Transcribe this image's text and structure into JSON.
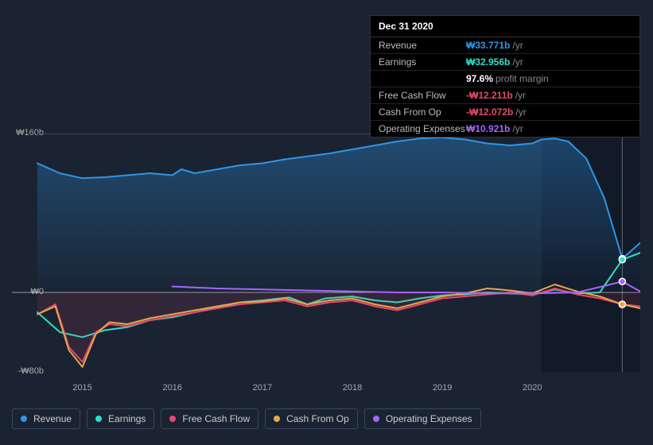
{
  "tooltip": {
    "date": "Dec 31 2020",
    "rows": [
      {
        "label": "Revenue",
        "value": "₩33.771b",
        "color": "#2f95e6",
        "unit": "/yr"
      },
      {
        "label": "Earnings",
        "value": "₩32.956b",
        "color": "#2de0c8",
        "unit": "/yr"
      },
      {
        "label": "",
        "value": "97.6%",
        "color": "#ffffff",
        "unit": "profit margin"
      },
      {
        "label": "Free Cash Flow",
        "value": "-₩12.211b",
        "color": "#e8486b",
        "unit": "/yr"
      },
      {
        "label": "Cash From Op",
        "value": "-₩12.072b",
        "color": "#e8486b",
        "unit": "/yr"
      },
      {
        "label": "Operating Expenses",
        "value": "₩10.921b",
        "color": "#a565ff",
        "unit": "/yr"
      }
    ]
  },
  "chart": {
    "type": "line",
    "background_color": "#1a2332",
    "grid_color": "#2a3442",
    "y_min": -80,
    "y_max": 160,
    "y_ticks": [
      {
        "value": 160,
        "label": "₩160b"
      },
      {
        "value": 0,
        "label": "₩0"
      },
      {
        "value": -80,
        "label": "-₩80b"
      }
    ],
    "x_min": 2014.5,
    "x_max": 2021.2,
    "x_ticks": [
      {
        "value": 2015,
        "label": "2015"
      },
      {
        "value": 2016,
        "label": "2016"
      },
      {
        "value": 2017,
        "label": "2017"
      },
      {
        "value": 2018,
        "label": "2018"
      },
      {
        "value": 2019,
        "label": "2019"
      },
      {
        "value": 2020,
        "label": "2020"
      }
    ],
    "highlight_x": 2021.0,
    "shade_from_x": 2020.1,
    "series": [
      {
        "name": "Revenue",
        "color": "#2f95e6",
        "fill": true,
        "stroke_width": 2,
        "points": [
          [
            2014.5,
            130
          ],
          [
            2014.75,
            120
          ],
          [
            2015.0,
            115
          ],
          [
            2015.25,
            116
          ],
          [
            2015.5,
            118
          ],
          [
            2015.75,
            120
          ],
          [
            2016.0,
            118
          ],
          [
            2016.1,
            124
          ],
          [
            2016.25,
            120
          ],
          [
            2016.5,
            124
          ],
          [
            2016.75,
            128
          ],
          [
            2017.0,
            130
          ],
          [
            2017.25,
            134
          ],
          [
            2017.5,
            137
          ],
          [
            2017.75,
            140
          ],
          [
            2018.0,
            144
          ],
          [
            2018.25,
            148
          ],
          [
            2018.5,
            152
          ],
          [
            2018.75,
            155
          ],
          [
            2019.0,
            156
          ],
          [
            2019.25,
            154
          ],
          [
            2019.5,
            150
          ],
          [
            2019.75,
            148
          ],
          [
            2020.0,
            150
          ],
          [
            2020.1,
            154
          ],
          [
            2020.25,
            155
          ],
          [
            2020.4,
            152
          ],
          [
            2020.6,
            135
          ],
          [
            2020.8,
            95
          ],
          [
            2021.0,
            34
          ],
          [
            2021.2,
            50
          ]
        ]
      },
      {
        "name": "Earnings",
        "color": "#2de0c8",
        "fill": false,
        "stroke_width": 2,
        "points": [
          [
            2014.5,
            -20
          ],
          [
            2014.75,
            -40
          ],
          [
            2015.0,
            -45
          ],
          [
            2015.25,
            -38
          ],
          [
            2015.5,
            -35
          ],
          [
            2015.75,
            -28
          ],
          [
            2016.0,
            -25
          ],
          [
            2016.25,
            -20
          ],
          [
            2016.5,
            -15
          ],
          [
            2016.75,
            -10
          ],
          [
            2017.0,
            -8
          ],
          [
            2017.3,
            -5
          ],
          [
            2017.5,
            -12
          ],
          [
            2017.7,
            -6
          ],
          [
            2018.0,
            -4
          ],
          [
            2018.25,
            -8
          ],
          [
            2018.5,
            -10
          ],
          [
            2018.75,
            -6
          ],
          [
            2019.0,
            -3
          ],
          [
            2019.25,
            -2
          ],
          [
            2019.5,
            0
          ],
          [
            2019.75,
            -1
          ],
          [
            2020.0,
            -2
          ],
          [
            2020.25,
            3
          ],
          [
            2020.5,
            -1
          ],
          [
            2020.75,
            0
          ],
          [
            2021.0,
            33
          ],
          [
            2021.2,
            40
          ]
        ]
      },
      {
        "name": "Free Cash Flow",
        "color": "#e8486b",
        "fill": true,
        "fill_opacity": 0.12,
        "stroke_width": 2,
        "points": [
          [
            2014.5,
            -22
          ],
          [
            2014.7,
            -12
          ],
          [
            2014.85,
            -55
          ],
          [
            2015.0,
            -70
          ],
          [
            2015.15,
            -40
          ],
          [
            2015.3,
            -32
          ],
          [
            2015.5,
            -34
          ],
          [
            2015.75,
            -28
          ],
          [
            2016.0,
            -24
          ],
          [
            2016.25,
            -20
          ],
          [
            2016.5,
            -16
          ],
          [
            2016.75,
            -12
          ],
          [
            2017.0,
            -10
          ],
          [
            2017.25,
            -8
          ],
          [
            2017.5,
            -14
          ],
          [
            2017.75,
            -10
          ],
          [
            2018.0,
            -8
          ],
          [
            2018.25,
            -14
          ],
          [
            2018.5,
            -18
          ],
          [
            2018.75,
            -12
          ],
          [
            2019.0,
            -6
          ],
          [
            2019.25,
            -4
          ],
          [
            2019.5,
            -2
          ],
          [
            2019.75,
            0
          ],
          [
            2020.0,
            -3
          ],
          [
            2020.25,
            4
          ],
          [
            2020.5,
            -2
          ],
          [
            2020.75,
            -6
          ],
          [
            2021.0,
            -12
          ],
          [
            2021.2,
            -14
          ]
        ]
      },
      {
        "name": "Cash From Op",
        "color": "#e6a74a",
        "fill": false,
        "stroke_width": 2,
        "points": [
          [
            2014.5,
            -22
          ],
          [
            2014.7,
            -14
          ],
          [
            2014.85,
            -58
          ],
          [
            2015.0,
            -75
          ],
          [
            2015.15,
            -42
          ],
          [
            2015.3,
            -30
          ],
          [
            2015.5,
            -32
          ],
          [
            2015.75,
            -26
          ],
          [
            2016.0,
            -22
          ],
          [
            2016.25,
            -18
          ],
          [
            2016.5,
            -14
          ],
          [
            2016.75,
            -10
          ],
          [
            2017.0,
            -9
          ],
          [
            2017.25,
            -6
          ],
          [
            2017.5,
            -12
          ],
          [
            2017.75,
            -8
          ],
          [
            2018.0,
            -6
          ],
          [
            2018.25,
            -12
          ],
          [
            2018.5,
            -16
          ],
          [
            2018.75,
            -10
          ],
          [
            2019.0,
            -4
          ],
          [
            2019.25,
            -1
          ],
          [
            2019.5,
            4
          ],
          [
            2019.75,
            2
          ],
          [
            2020.0,
            -1
          ],
          [
            2020.25,
            8
          ],
          [
            2020.5,
            1
          ],
          [
            2020.75,
            -4
          ],
          [
            2021.0,
            -12
          ],
          [
            2021.2,
            -16
          ]
        ]
      },
      {
        "name": "Operating Expenses",
        "color": "#a565ff",
        "fill": false,
        "stroke_width": 2,
        "points": [
          [
            2016.0,
            6
          ],
          [
            2016.5,
            4
          ],
          [
            2017.0,
            3
          ],
          [
            2017.5,
            2
          ],
          [
            2018.0,
            1
          ],
          [
            2018.5,
            0
          ],
          [
            2019.0,
            0
          ],
          [
            2019.5,
            -1
          ],
          [
            2020.0,
            -1
          ],
          [
            2020.5,
            0
          ],
          [
            2021.0,
            11
          ],
          [
            2021.2,
            1
          ]
        ]
      }
    ]
  },
  "legend": [
    {
      "label": "Revenue",
      "color": "#2f95e6"
    },
    {
      "label": "Earnings",
      "color": "#2de0c8"
    },
    {
      "label": "Free Cash Flow",
      "color": "#e8486b"
    },
    {
      "label": "Cash From Op",
      "color": "#e6a74a"
    },
    {
      "label": "Operating Expenses",
      "color": "#a565ff"
    }
  ]
}
